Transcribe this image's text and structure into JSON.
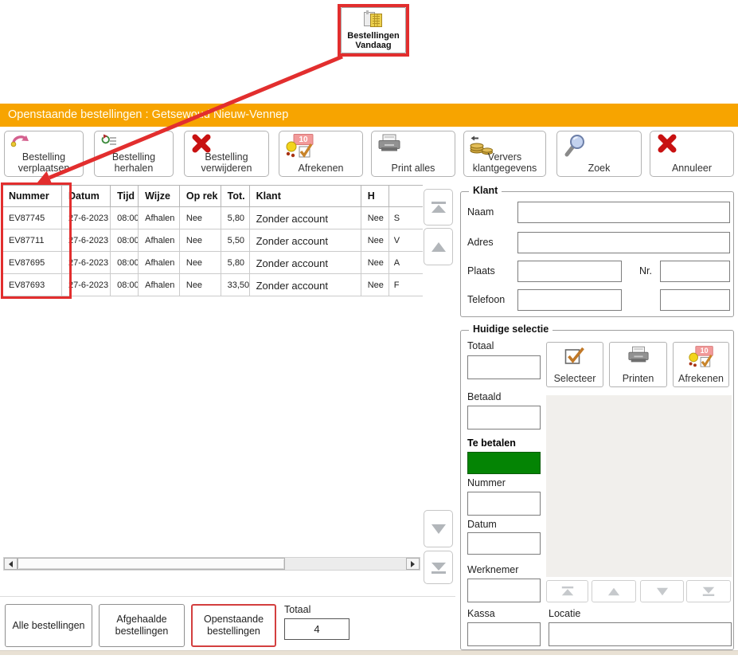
{
  "annotation": {
    "highlight_color": "#e22e2e"
  },
  "launcher": {
    "label": "Bestellingen\nVandaag"
  },
  "window": {
    "title": "Openstaande bestellingen : Getsewoud Nieuw-Vennep",
    "titlebar_color": "#f7a400"
  },
  "icons": {
    "checkout_badge": "10"
  },
  "toolbar": {
    "buttons": [
      {
        "label": "Bestelling\nverplaatsen",
        "icon": "move-order-icon"
      },
      {
        "label": "Bestelling\nherhalen",
        "icon": "repeat-order-icon"
      },
      {
        "label": "Bestelling\nverwijderen",
        "icon": "delete-x-icon"
      },
      {
        "label": "Afrekenen",
        "icon": "checkout-icon"
      },
      {
        "label": "Print alles",
        "icon": "printer-icon"
      },
      {
        "label": "Ververs\nklantgegevens",
        "icon": "refresh-customers-icon"
      },
      {
        "label": "Zoek",
        "icon": "search-icon"
      },
      {
        "label": "Annuleer",
        "icon": "cancel-x-icon"
      }
    ]
  },
  "orders_table": {
    "columns": [
      "Nummer",
      "Datum",
      "Tijd",
      "Wijze",
      "Op rek",
      "Tot.",
      "Klant",
      "H",
      ""
    ],
    "rows": [
      [
        "EV87745",
        "27-6-2023",
        "08:00",
        "Afhalen",
        "Nee",
        "5,80",
        "Zonder account",
        "Nee",
        "S"
      ],
      [
        "EV87711",
        "27-6-2023",
        "08:00",
        "Afhalen",
        "Nee",
        "5,50",
        "Zonder account",
        "Nee",
        "V"
      ],
      [
        "EV87695",
        "27-6-2023",
        "08:00",
        "Afhalen",
        "Nee",
        "5,80",
        "Zonder account",
        "Nee",
        "A"
      ],
      [
        "EV87693",
        "27-6-2023",
        "08:00",
        "Afhalen",
        "Nee",
        "33,50",
        "Zonder account",
        "Nee",
        "F"
      ]
    ]
  },
  "klant_panel": {
    "title": "Klant",
    "naam_label": "Naam",
    "adres_label": "Adres",
    "plaats_label": "Plaats",
    "nr_label": "Nr.",
    "telefoon_label": "Telefoon"
  },
  "selection_panel": {
    "title": "Huidige selectie",
    "totaal_label": "Totaal",
    "betaald_label": "Betaald",
    "te_betalen_label": "Te betalen",
    "te_betalen_color": "#048404",
    "nummer_label": "Nummer",
    "datum_label": "Datum",
    "werknemer_label": "Werknemer",
    "kassa_label": "Kassa",
    "locatie_label": "Locatie",
    "buttons": [
      {
        "label": "Selecteer",
        "icon": "select-check-icon"
      },
      {
        "label": "Printen",
        "icon": "printer-icon"
      },
      {
        "label": "Afrekenen",
        "icon": "checkout-icon"
      }
    ]
  },
  "footer": {
    "filters": [
      {
        "label": "Alle bestellingen",
        "active": false
      },
      {
        "label": "Afgehaalde\nbestellingen",
        "active": false
      },
      {
        "label": "Openstaande\nbestellingen",
        "active": true
      }
    ],
    "totaal_label": "Totaal",
    "totaal_value": "4"
  }
}
